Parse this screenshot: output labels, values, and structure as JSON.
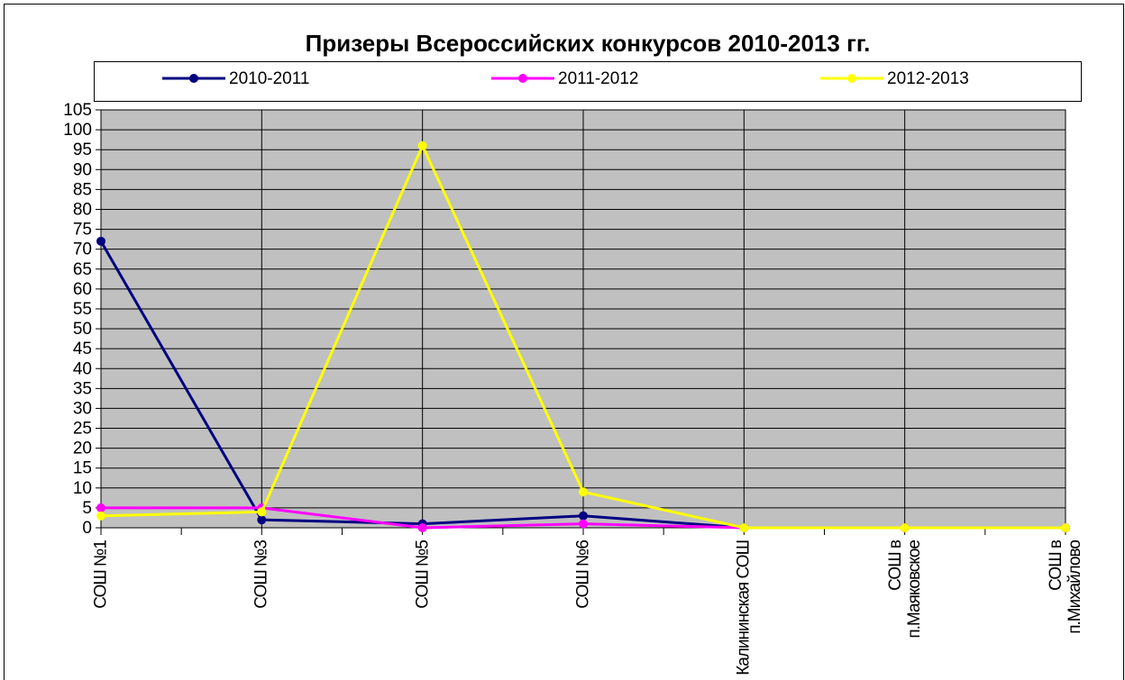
{
  "chart_data": {
    "type": "line",
    "title": "Призеры Всероссийских конкурсов 2010-2013 гг.",
    "categories": [
      "СОШ №1",
      "СОШ №3",
      "СОШ №5",
      "СОШ №6",
      "Калининская СОШ",
      "СОШ в п.Маяковское",
      "СОШ в п.Михайлово"
    ],
    "series": [
      {
        "name": "2010-2011",
        "color": "#000080",
        "values": [
          72,
          2,
          1,
          3,
          0,
          0,
          0
        ]
      },
      {
        "name": "2011-2012",
        "color": "#ff00ff",
        "values": [
          5,
          5,
          0,
          1,
          0,
          0,
          0
        ]
      },
      {
        "name": "2012-2013",
        "color": "#ffff00",
        "values": [
          3,
          4,
          96,
          9,
          0,
          0,
          0
        ]
      }
    ],
    "ylim": [
      0,
      105
    ],
    "yticks": [
      0,
      5,
      10,
      15,
      20,
      25,
      30,
      35,
      40,
      45,
      50,
      55,
      60,
      65,
      70,
      75,
      80,
      85,
      90,
      95,
      100,
      105
    ],
    "grid": true,
    "legend": "top",
    "plot_color": "#c0c0c0"
  }
}
